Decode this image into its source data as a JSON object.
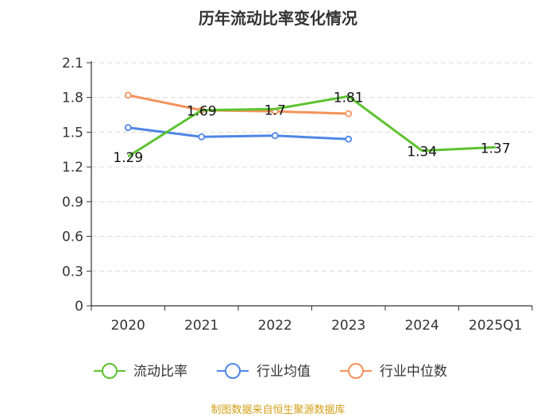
{
  "chart_data": {
    "type": "line",
    "title": "历年流动比率变化情况",
    "categories": [
      "2020",
      "2021",
      "2022",
      "2023",
      "2024",
      "2025Q1"
    ],
    "y_ticks": [
      "0",
      "0.3",
      "0.6",
      "0.9",
      "1.2",
      "1.5",
      "1.8",
      "2.1"
    ],
    "ylim": [
      0,
      2.1
    ],
    "grid": true,
    "legend_position": "bottom",
    "series": [
      {
        "name": "流动比率",
        "color": "#5dc230",
        "values": [
          1.29,
          1.69,
          1.7,
          1.81,
          1.34,
          1.37
        ],
        "labels": [
          "1.29",
          "1.69",
          "1.7",
          "1.81",
          "1.34",
          "1.37"
        ]
      },
      {
        "name": "行业均值",
        "color": "#4f86e6",
        "values": [
          1.54,
          1.46,
          1.47,
          1.44,
          null,
          null
        ]
      },
      {
        "name": "行业中位数",
        "color": "#f4935c",
        "values": [
          1.82,
          1.69,
          1.68,
          1.66,
          null,
          null
        ]
      }
    ]
  },
  "source": {
    "text": "制图数据来自恒生聚源数据库",
    "color": "#d4a017"
  }
}
